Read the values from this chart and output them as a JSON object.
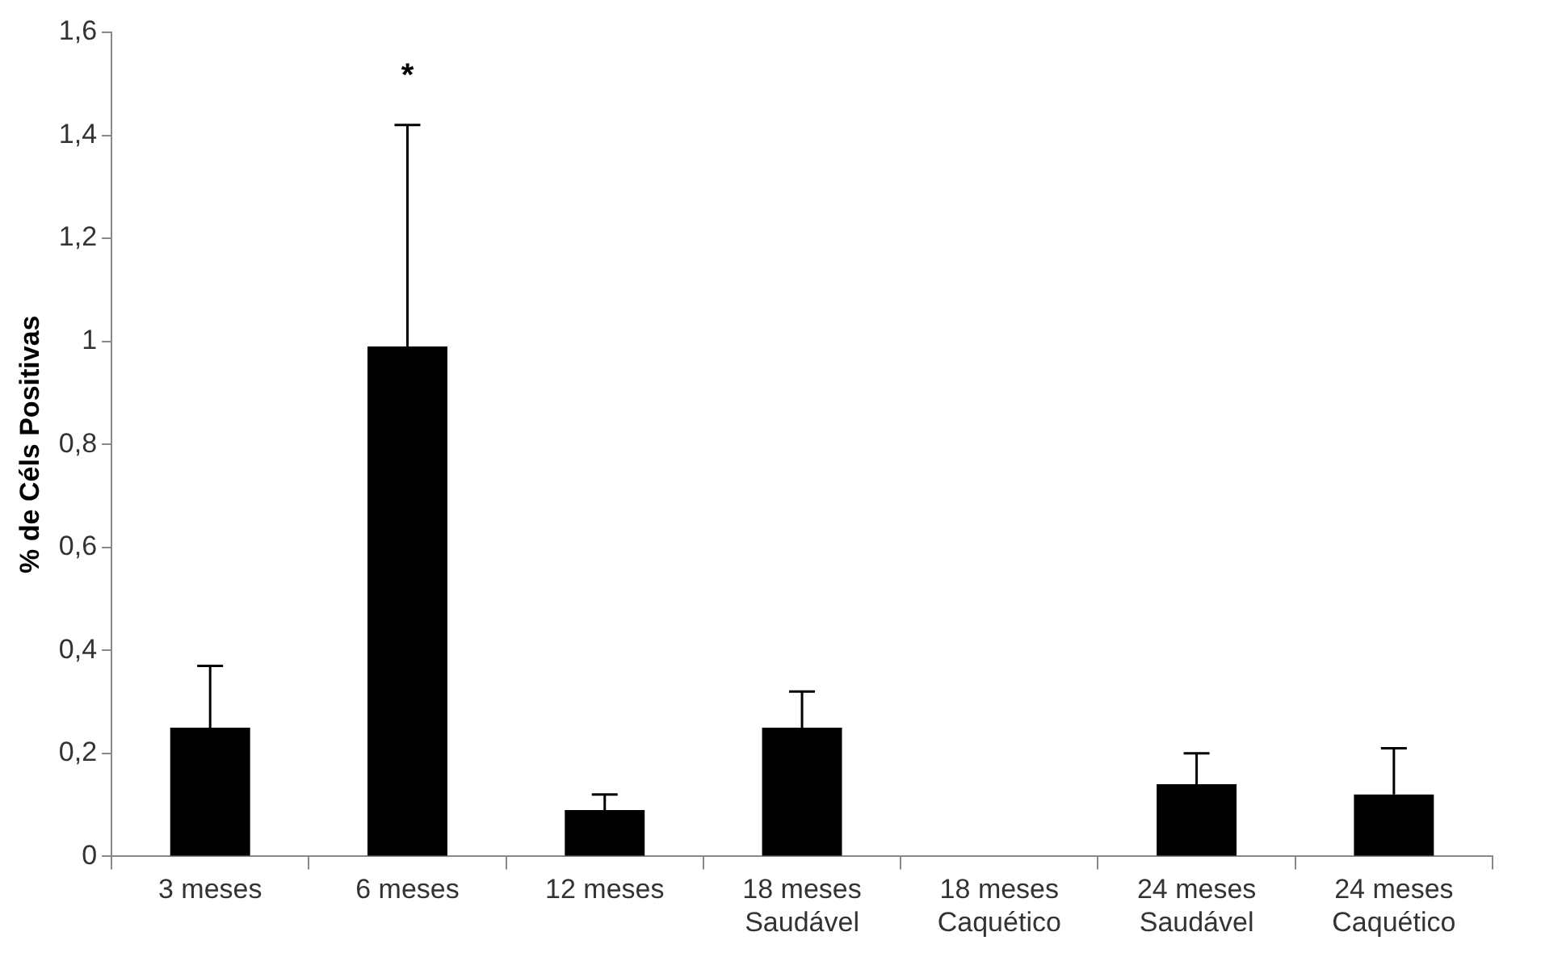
{
  "chart_data": {
    "type": "bar",
    "ylabel": "% de Céls Positivas",
    "categories": [
      "3 meses",
      "6 meses",
      "12 meses",
      "18 meses\nSaudável",
      "18 meses\nCaquético",
      "24 meses\nSaudável",
      "24 meses\nCaquético"
    ],
    "values": [
      0.25,
      0.99,
      0.09,
      0.25,
      0,
      0.14,
      0.12
    ],
    "errors": [
      [
        0.25,
        0.37
      ],
      [
        0.99,
        1.42
      ],
      [
        0.09,
        0.12
      ],
      [
        0.25,
        0.32
      ],
      null,
      [
        0.14,
        0.2
      ],
      [
        0.12,
        0.21
      ]
    ],
    "color": "#000000",
    "ylim": [
      0,
      1.6
    ],
    "yticks": [
      0,
      {
        "value": 0.2,
        "label": "0,2"
      },
      {
        "value": 0.4,
        "label": "0,4"
      },
      {
        "value": 0.6,
        "label": "0,6"
      },
      {
        "value": 0.8,
        "label": "0,8"
      },
      1,
      {
        "value": 1.2,
        "label": "1,2"
      },
      {
        "value": 1.4,
        "label": "1,4"
      },
      {
        "value": 1.6,
        "label": "1,6"
      }
    ],
    "grid": false,
    "legend": false,
    "annotations": [
      "*"
    ]
  }
}
